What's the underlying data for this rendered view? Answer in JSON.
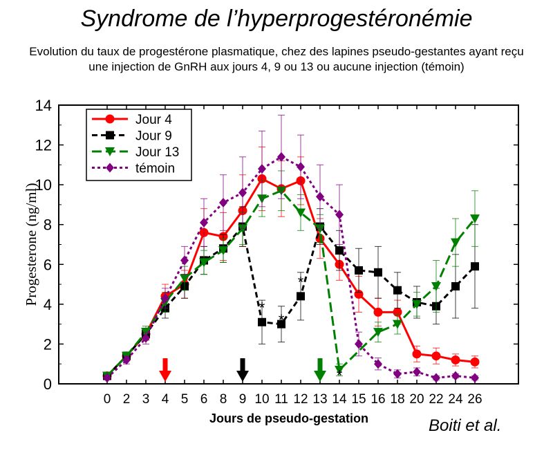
{
  "page": {
    "title": "Syndrome de l’hyperprogestéronémie",
    "subtitle": "Evolution du taux de progestérone plasmatique, chez des lapines pseudo-gestantes ayant reçu une injection de GnRH aux jours 4, 9 ou 13 ou aucune injection (témoin)",
    "credit": "Boiti et al."
  },
  "chart_data": {
    "type": "line",
    "xlabel": "Jours de pseudo-gestation",
    "ylabel": "Progesterone (ng/ml)",
    "ylim": [
      0,
      14
    ],
    "yticks": [
      0,
      2,
      4,
      6,
      8,
      10,
      12,
      14
    ],
    "categories": [
      "0",
      "2",
      "3",
      "4",
      "5",
      "6",
      "8",
      "9",
      "10",
      "11",
      "12",
      "13",
      "14",
      "15",
      "16",
      "18",
      "20",
      "22",
      "24",
      "26"
    ],
    "grid": false,
    "legend_position": "top-left",
    "series": [
      {
        "name": "Jour 4",
        "color": "#ff0000",
        "dash": "solid",
        "marker": "circle",
        "x": [
          0,
          2,
          3,
          4,
          5,
          6,
          8,
          9,
          10,
          11,
          12,
          13,
          14,
          15,
          16,
          18,
          20,
          22,
          24,
          26
        ],
        "values": [
          0.4,
          1.4,
          2.5,
          4.4,
          5.0,
          7.6,
          7.4,
          8.7,
          10.3,
          9.8,
          10.2,
          7.3,
          6.0,
          4.5,
          3.6,
          3.6,
          1.5,
          1.4,
          1.2,
          1.1
        ],
        "errors": [
          0.1,
          0.2,
          0.3,
          0.6,
          0.7,
          1.2,
          1.2,
          1.8,
          1.6,
          1.4,
          1.2,
          1.0,
          0.8,
          0.9,
          0.7,
          0.6,
          0.4,
          0.4,
          0.3,
          0.3
        ]
      },
      {
        "name": "Jour 9",
        "color": "#000000",
        "dash": "dashed",
        "marker": "square",
        "x": [
          0,
          2,
          3,
          4,
          5,
          6,
          8,
          9,
          10,
          11,
          12,
          13,
          14,
          15,
          16,
          18,
          20,
          22,
          24,
          26
        ],
        "values": [
          0.4,
          1.4,
          2.5,
          3.8,
          4.9,
          6.2,
          6.8,
          7.9,
          3.1,
          3.0,
          4.4,
          7.9,
          6.7,
          5.7,
          5.6,
          4.7,
          4.1,
          3.9,
          4.9,
          5.9
        ],
        "errors": [
          0.1,
          0.2,
          0.3,
          0.5,
          0.6,
          0.7,
          0.7,
          1.0,
          1.1,
          0.9,
          1.2,
          0.9,
          1.0,
          1.1,
          1.3,
          0.9,
          0.8,
          0.9,
          1.6,
          2.1
        ]
      },
      {
        "name": "Jour 13",
        "color": "#008000",
        "dash": "longdash",
        "marker": "triangle-down",
        "x": [
          0,
          2,
          3,
          4,
          5,
          6,
          8,
          9,
          10,
          11,
          12,
          13,
          14,
          15,
          16,
          18,
          20,
          22,
          24,
          26
        ],
        "values": [
          0.4,
          1.4,
          2.6,
          4.1,
          5.3,
          6.1,
          6.7,
          7.8,
          9.3,
          9.7,
          8.6,
          7.8,
          0.7,
          null,
          2.6,
          3.0,
          4.0,
          4.9,
          7.1,
          8.3
        ],
        "errors": [
          0.1,
          0.2,
          0.3,
          0.5,
          0.6,
          0.6,
          0.6,
          0.8,
          0.9,
          1.0,
          0.9,
          0.7,
          0.3,
          null,
          0.5,
          0.5,
          0.6,
          1.3,
          1.2,
          1.4
        ]
      },
      {
        "name": "témoin",
        "color": "#800080",
        "dash": "dotted",
        "marker": "diamond",
        "x": [
          0,
          2,
          3,
          4,
          5,
          6,
          8,
          9,
          10,
          11,
          12,
          13,
          14,
          15,
          16,
          18,
          20,
          22,
          24,
          26
        ],
        "values": [
          0.3,
          1.2,
          2.3,
          4.3,
          6.2,
          8.1,
          9.1,
          9.6,
          10.8,
          11.4,
          10.9,
          9.4,
          8.5,
          2.0,
          1.0,
          0.5,
          0.6,
          0.3,
          0.4,
          0.3
        ],
        "errors": [
          0.1,
          0.2,
          0.3,
          0.5,
          0.7,
          1.2,
          1.4,
          1.8,
          1.9,
          2.1,
          1.6,
          1.6,
          1.5,
          0.6,
          0.3,
          0.2,
          0.2,
          0.1,
          0.1,
          0.1
        ]
      }
    ],
    "injection_arrows": [
      {
        "day": 4,
        "color": "#ff0000"
      },
      {
        "day": 9,
        "color": "#000000"
      },
      {
        "day": 13,
        "color": "#008000"
      }
    ],
    "significance_marks": [
      {
        "x": 10,
        "y": 3.9,
        "label": "*"
      },
      {
        "x": 11,
        "y": 3.3,
        "label": "*"
      },
      {
        "x": 12,
        "y": 5.2,
        "label": "*"
      },
      {
        "x": 14,
        "y": 0.5,
        "label": "*"
      }
    ]
  }
}
